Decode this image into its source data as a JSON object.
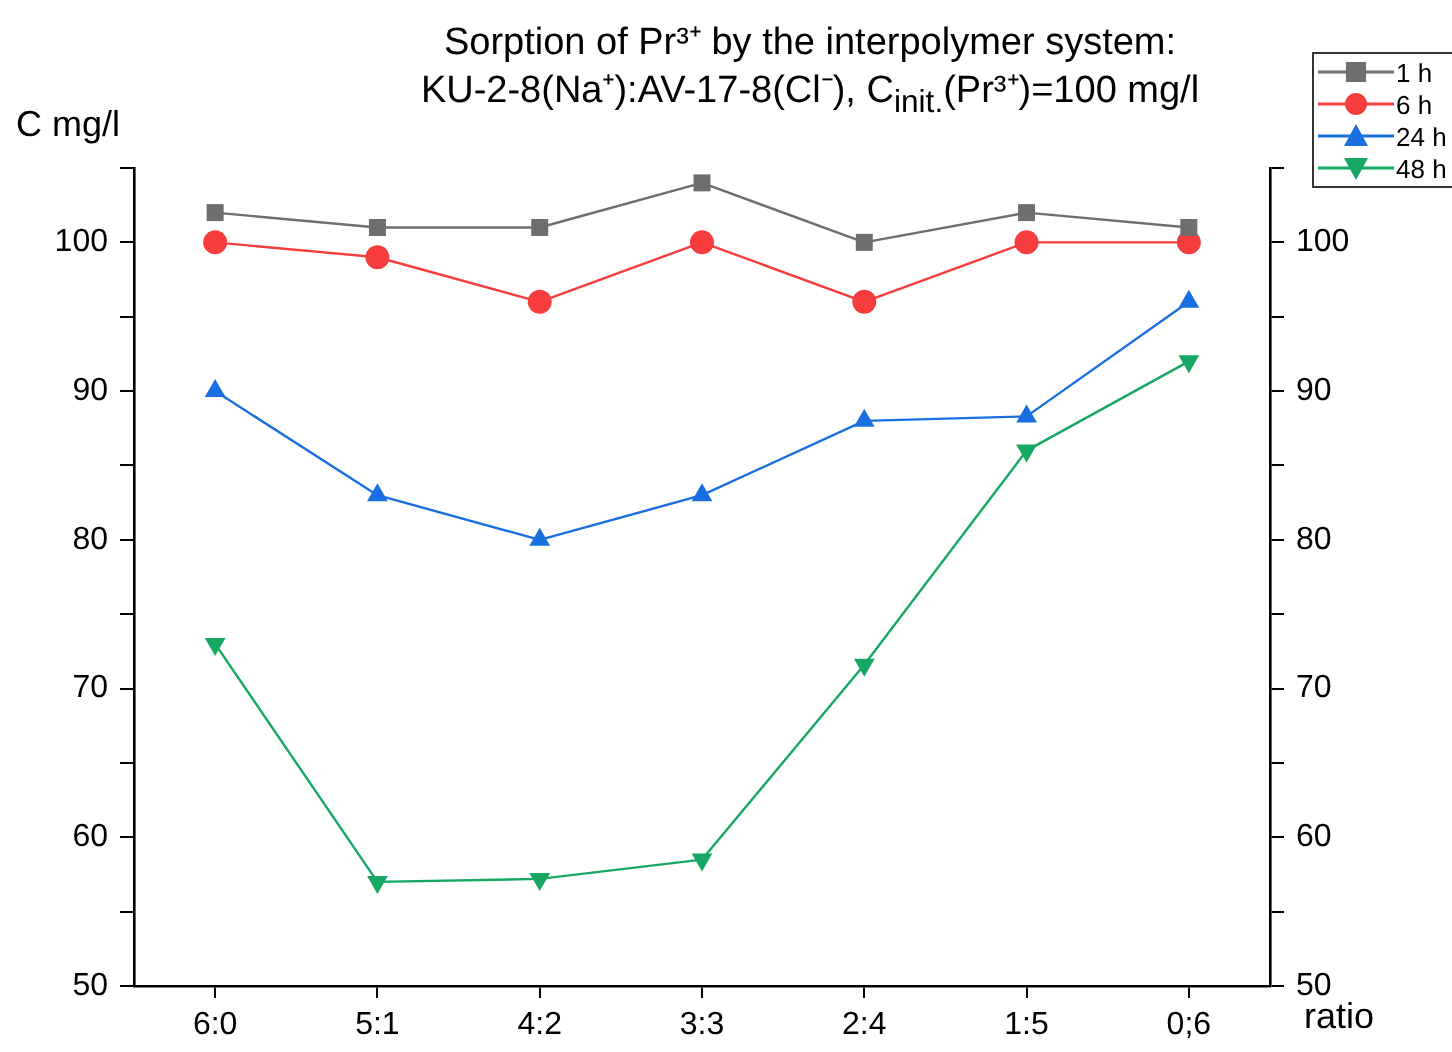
{
  "chart_data": {
    "type": "line",
    "title": "Sorption of Pr³⁺ by the interpolymer system:\nKU-2-8(Na⁺):AV-17-8(Cl⁻), C$_{init.}$(Pr³⁺)=100 mg/l",
    "xlabel": "ratio",
    "ylabel": "C mg/l",
    "categories": [
      "6:0",
      "5:1",
      "4:2",
      "3:3",
      "2:4",
      "1:5",
      "0;6"
    ],
    "ylim": [
      50,
      105
    ],
    "yticks": [
      50,
      {
        "value": 55,
        "label": null
      },
      60,
      {
        "value": 65,
        "label": null
      },
      70,
      {
        "value": 75,
        "label": null
      },
      80,
      {
        "value": 85,
        "label": null
      },
      90,
      {
        "value": 95,
        "label": null
      },
      100,
      {
        "value": 105,
        "label": null
      }
    ],
    "y2lim": [
      50,
      105
    ],
    "y2ticks": [
      50,
      {
        "value": 55,
        "label": null
      },
      60,
      {
        "value": 65,
        "label": null
      },
      70,
      {
        "value": 75,
        "label": null
      },
      80,
      {
        "value": 85,
        "label": null
      },
      90,
      {
        "value": 95,
        "label": null
      },
      100,
      {
        "value": 105,
        "label": null
      }
    ],
    "grid": false,
    "legend": "top right",
    "line_style": "solid",
    "series": [
      {
        "name": "1 h",
        "color": "#6e6e6e",
        "marker": "square",
        "values": [
          102,
          101,
          101,
          104,
          100,
          102,
          101
        ]
      },
      {
        "name": "6 h",
        "color": "#f63c3c",
        "marker": "circle",
        "values": [
          100,
          99,
          96,
          100,
          96,
          100,
          100
        ]
      },
      {
        "name": "24 h",
        "color": "#1a6fe0",
        "marker": "triangle",
        "values": [
          90,
          83,
          80,
          83,
          88,
          88.3,
          96
        ]
      },
      {
        "name": "48 h",
        "color": "#16a862",
        "marker": "triangle-down",
        "values": [
          73,
          57,
          57.2,
          58.5,
          71.6,
          86,
          92
        ]
      }
    ]
  }
}
